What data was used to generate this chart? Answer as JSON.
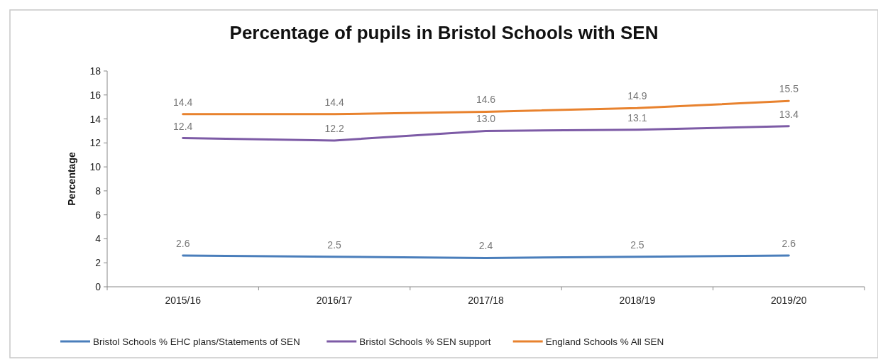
{
  "chart_data": {
    "type": "line",
    "title": "Percentage of pupils in Bristol Schools with SEN",
    "ylabel": "Percentage",
    "categories": [
      "2015/16",
      "2016/17",
      "2017/18",
      "2018/19",
      "2019/20"
    ],
    "ylim": [
      0,
      18
    ],
    "yticks": [
      0,
      2,
      4,
      6,
      8,
      10,
      12,
      14,
      16,
      18
    ],
    "grid": false,
    "legend": "bottom",
    "marker": "none",
    "line_style": "solid",
    "series": [
      {
        "name": "Bristol Schools % EHC plans/Statements of SEN",
        "color": "#4a7ebb",
        "values": [
          2.6,
          2.5,
          2.4,
          2.5,
          2.6
        ],
        "value_labels": [
          "2.6",
          "2.5",
          "2.4",
          "2.5",
          "2.6"
        ]
      },
      {
        "name": "Bristol Schools % SEN support",
        "color": "#7d5ba6",
        "values": [
          12.4,
          12.2,
          13.0,
          13.1,
          13.4
        ],
        "value_labels": [
          "12.4",
          "12.2",
          "13.0",
          "13.1",
          "13.4"
        ]
      },
      {
        "name": "England Schools % All SEN",
        "color": "#e8822e",
        "values": [
          14.4,
          14.4,
          14.6,
          14.9,
          15.5
        ],
        "value_labels": [
          "14.4",
          "14.4",
          "14.6",
          "14.9",
          "15.5"
        ]
      }
    ]
  }
}
